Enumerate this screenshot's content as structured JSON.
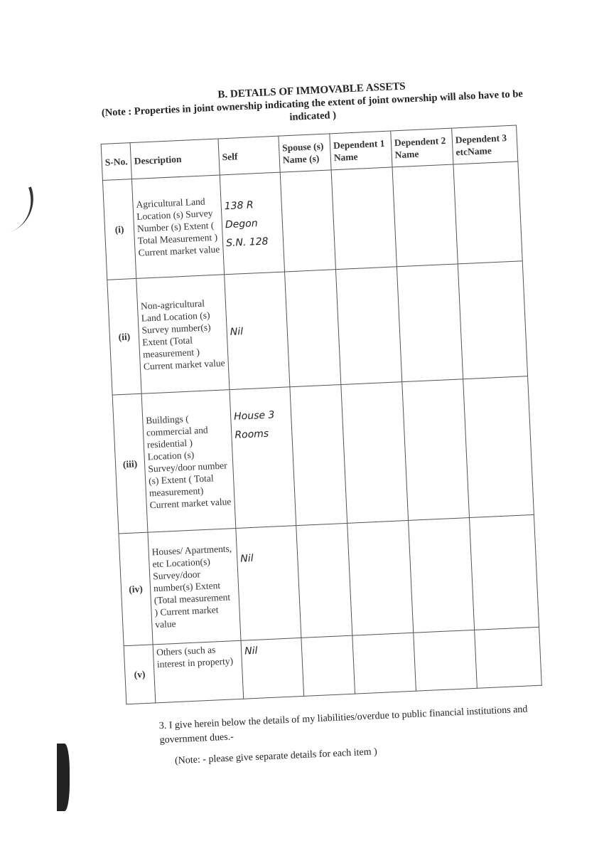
{
  "heading": {
    "title": "B. DETAILS OF IMMOVABLE ASSETS",
    "note": "(Note : Properties in joint ownership indicating the extent of joint ownership will also have to be indicated )"
  },
  "table": {
    "headers": [
      "S-No.",
      "Description",
      "Self",
      "Spouse (s) Name (s)",
      "Dependent 1 Name",
      "Dependent 2 Name",
      "Dependent 3 etcName"
    ],
    "rows": [
      {
        "sno": "(i)",
        "description": "Agricultural Land Location (s) Survey Number (s) Extent ( Total Measurement ) Current market value",
        "self": "138 R Degon S.N. 128"
      },
      {
        "sno": "(ii)",
        "description": "Non-agricultural Land Location (s) Survey number(s) Extent (Total measurement ) Current market value",
        "self": "Nil"
      },
      {
        "sno": "(iii)",
        "description": "Buildings ( commercial and residential ) Location (s) Survey/door number (s) Extent ( Total measurement) Current market value",
        "self": "House 3 Rooms"
      },
      {
        "sno": "(iv)",
        "description": "Houses/ Apartments, etc Location(s) Survey/door number(s) Extent (Total measurement ) Current market value",
        "self": "Nil"
      },
      {
        "sno": "(v)",
        "description": "Others (such as interest in property)",
        "self": "Nil"
      }
    ]
  },
  "footer": {
    "liabilities": "3. I give herein below the details of my liabilities/overdue to public financial institutions and government dues.-",
    "note": "(Note: - please give separate details for each item )"
  }
}
